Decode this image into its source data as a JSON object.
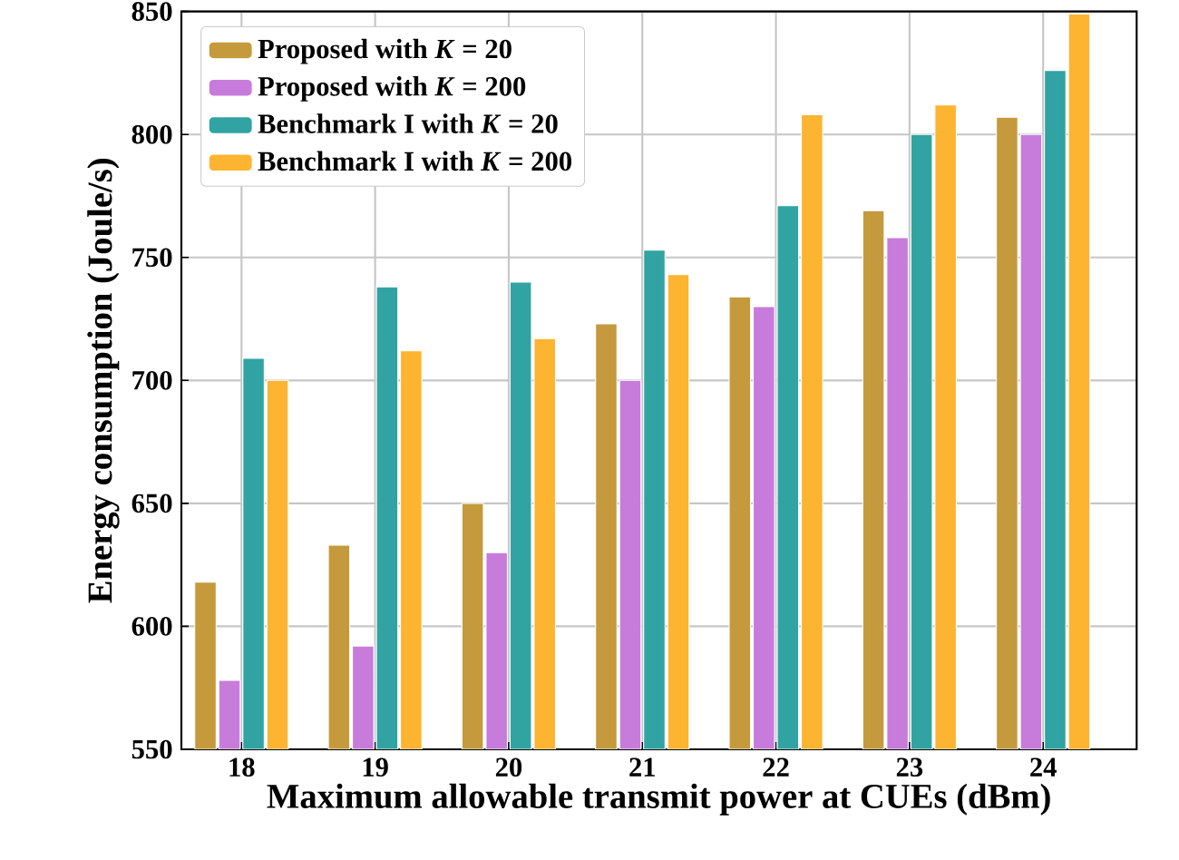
{
  "chart_data": {
    "type": "bar",
    "xlabel": "Maximum allowable transmit power at CUEs (dBm)",
    "ylabel": "Energy consumption (Joule/s)",
    "categories": [
      "18",
      "19",
      "20",
      "21",
      "22",
      "23",
      "24"
    ],
    "series": [
      {
        "name": "Proposed with *K* = 20",
        "color": "#c49a3c",
        "values": [
          618,
          633,
          650,
          723,
          734,
          769,
          807
        ]
      },
      {
        "name": "Proposed with *K* = 200",
        "color": "#c77cdb",
        "values": [
          578,
          592,
          630,
          700,
          730,
          758,
          800
        ]
      },
      {
        "name": "Benchmark I with *K* = 20",
        "color": "#31a3a3",
        "values": [
          709,
          738,
          740,
          753,
          771,
          800,
          826
        ]
      },
      {
        "name": "Benchmark I with *K* = 200",
        "color": "#fdb431",
        "values": [
          700,
          712,
          717,
          743,
          808,
          812,
          849
        ]
      }
    ],
    "ylim": [
      550,
      850
    ],
    "yticks": [
      550,
      600,
      650,
      700,
      750,
      800,
      850
    ],
    "grid": true,
    "legend": "top left"
  }
}
